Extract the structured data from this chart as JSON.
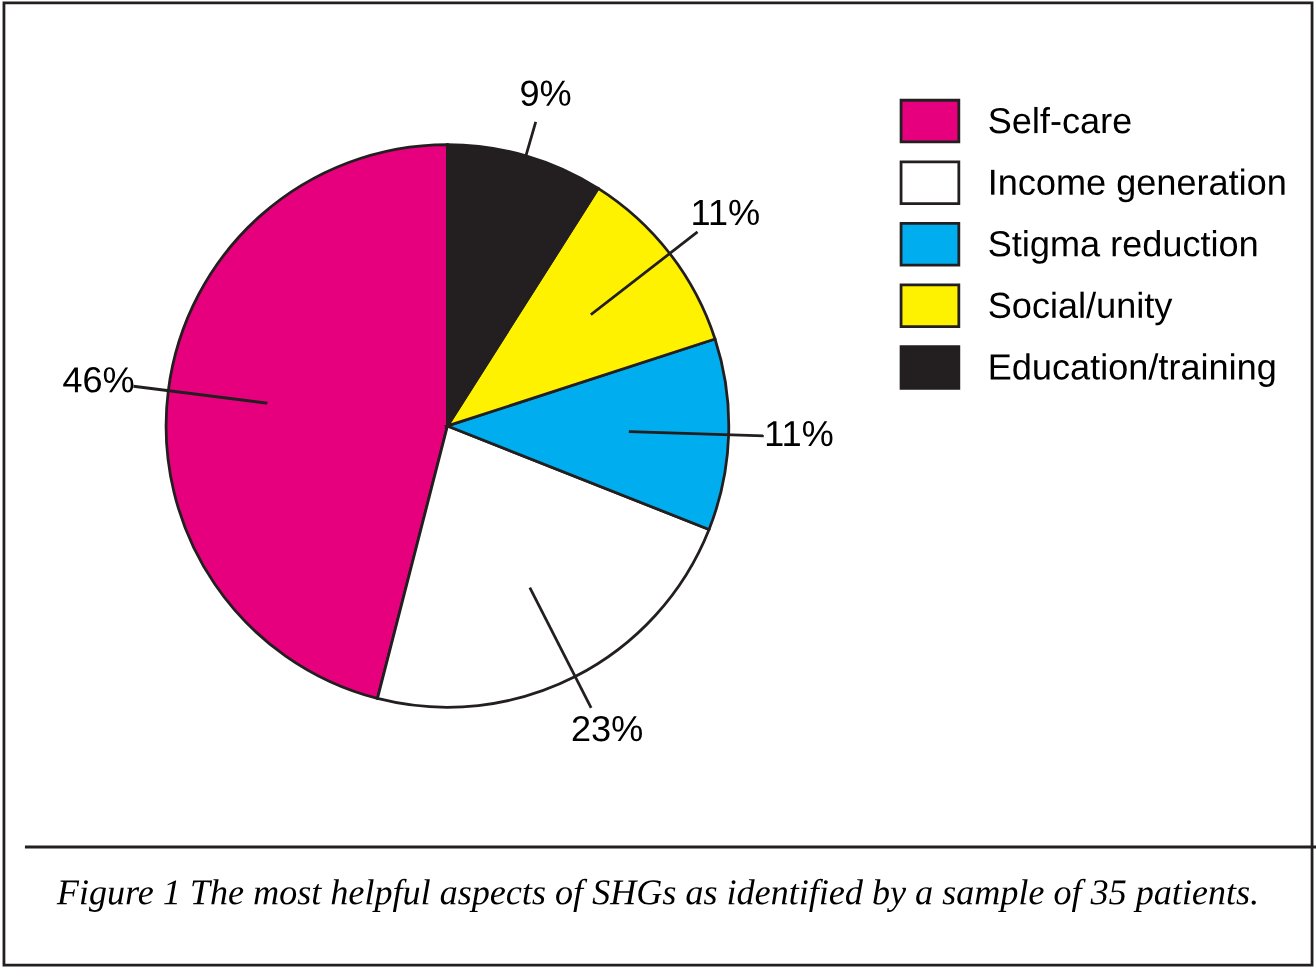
{
  "chart_data": {
    "type": "pie",
    "categories": [
      "Self-care",
      "Income generation",
      "Stigma reduction",
      "Social/unity",
      "Education/training"
    ],
    "values": [
      46,
      23,
      11,
      11,
      9
    ],
    "value_labels": [
      "46%",
      "23%",
      "11%",
      "11%",
      "9%"
    ],
    "colors": [
      "#e6007e",
      "#ffffff",
      "#00aeef",
      "#fff200",
      "#231f20"
    ],
    "legend": "right",
    "annotations": [
      "Figure 1 The most helpful aspects of SHGs as identified by a sample of 35 patients."
    ]
  }
}
